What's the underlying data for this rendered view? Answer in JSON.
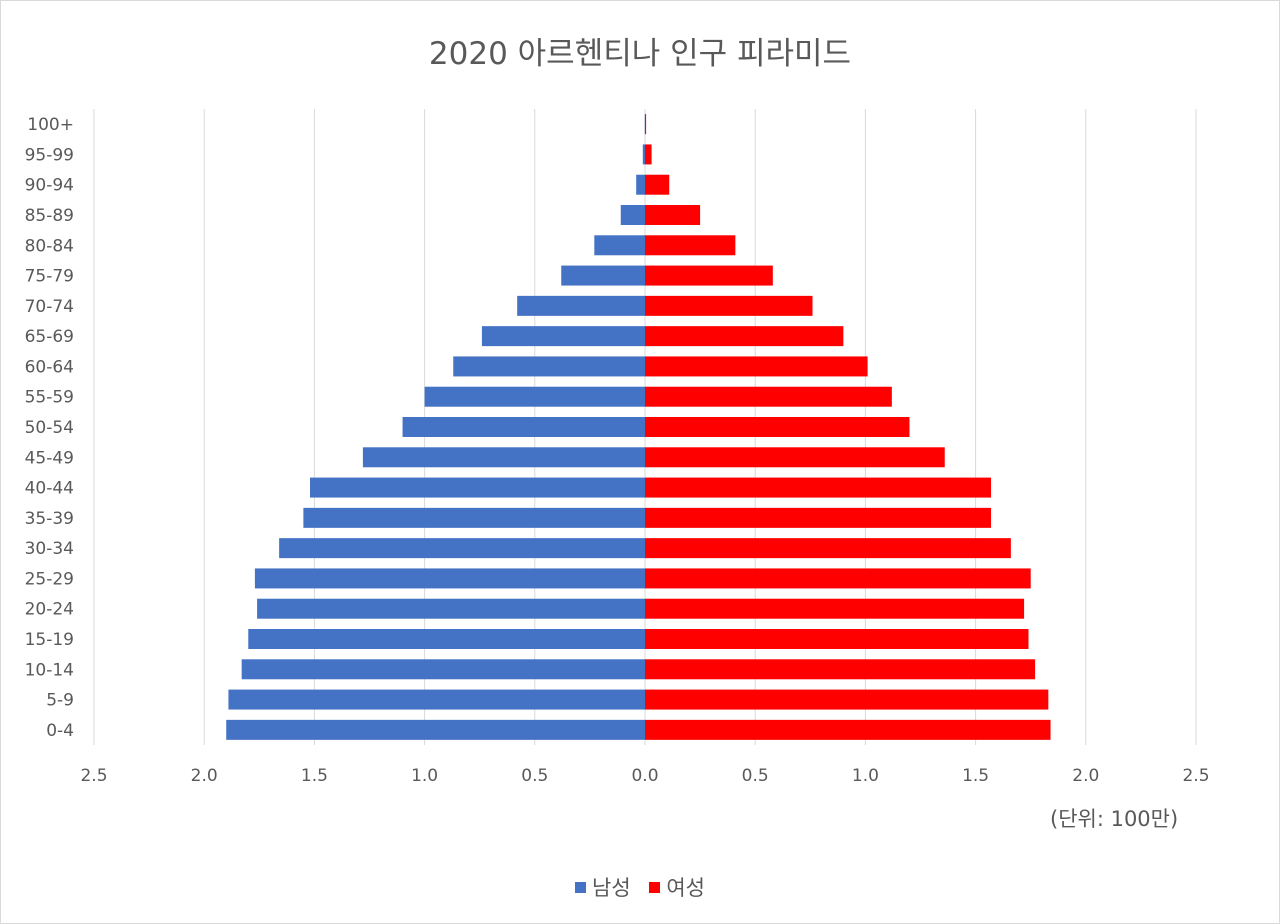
{
  "colors": {
    "male": "#4472c4",
    "female": "#ff0000",
    "grid": "#d9d9d9",
    "text": "#595959"
  },
  "legend": {
    "male_label": "남성",
    "female_label": "여성"
  },
  "chart_data": {
    "type": "bar",
    "orientation": "horizontal-population-pyramid",
    "title": "2020 아르헨티나 인구 피라미드",
    "unit_note": "(단위: 100만)",
    "xlim": [
      -2.5,
      2.5
    ],
    "x_tick_values": [
      -2.5,
      -2.0,
      -1.5,
      -1.0,
      -0.5,
      0.0,
      0.5,
      1.0,
      1.5,
      2.0,
      2.5
    ],
    "x_tick_labels": [
      "2.5",
      "2.0",
      "1.5",
      "1.0",
      "0.5",
      "0.0",
      "0.5",
      "1.0",
      "1.5",
      "2.0",
      "2.5"
    ],
    "grid": true,
    "legend_position": "bottom",
    "categories": [
      "0-4",
      "5-9",
      "10-14",
      "15-19",
      "20-24",
      "25-29",
      "30-34",
      "35-39",
      "40-44",
      "45-49",
      "50-54",
      "55-59",
      "60-64",
      "65-69",
      "70-74",
      "75-79",
      "80-84",
      "85-89",
      "90-94",
      "95-99",
      "100+"
    ],
    "series": [
      {
        "name": "남성",
        "values": [
          1.9,
          1.89,
          1.83,
          1.8,
          1.76,
          1.77,
          1.66,
          1.55,
          1.52,
          1.28,
          1.1,
          1.0,
          0.87,
          0.74,
          0.58,
          0.38,
          0.23,
          0.11,
          0.04,
          0.01,
          0.001
        ]
      },
      {
        "name": "여성",
        "values": [
          1.84,
          1.83,
          1.77,
          1.74,
          1.72,
          1.75,
          1.66,
          1.57,
          1.57,
          1.36,
          1.2,
          1.12,
          1.01,
          0.9,
          0.76,
          0.58,
          0.41,
          0.25,
          0.11,
          0.03,
          0.005
        ]
      }
    ]
  }
}
